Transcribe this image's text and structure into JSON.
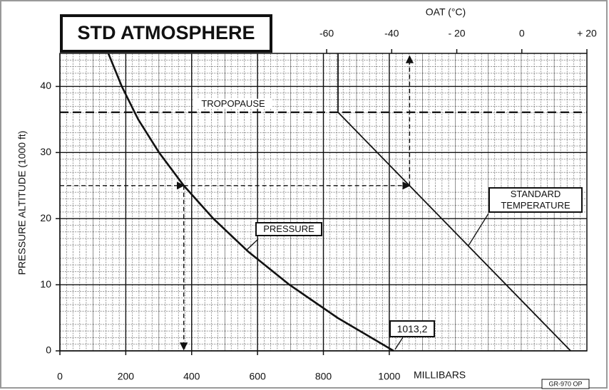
{
  "chart_data": {
    "type": "line",
    "title": "STD ATMOSPHERE",
    "xlabel": "MILLIBARS",
    "x2label": "OAT (°C)",
    "ylabel": "PRESSURE ALTITUDE (1000 ft)",
    "xlim": [
      0,
      1600
    ],
    "xticks": [
      0,
      200,
      400,
      600,
      800,
      1000
    ],
    "x2lim": [
      -142,
      20
    ],
    "x2ticks": [
      -60,
      -40,
      {
        "value": -20,
        "label": "- 20"
      },
      0,
      {
        "value": 20,
        "label": "+ 20"
      }
    ],
    "ylim": [
      0,
      45
    ],
    "yticks": [
      0,
      10,
      20,
      30,
      40
    ],
    "grid": true,
    "series": [
      {
        "name": "PRESSURE",
        "color": "#111111",
        "x": [
          1013.2,
          843,
          697,
          572,
          466,
          376,
          301,
          238,
          227,
          188,
          147
        ],
        "values": [
          0,
          5,
          10,
          15,
          20,
          25,
          30,
          35,
          36.09,
          40,
          45
        ]
      },
      {
        "name": "STANDARD TEMPERATURE",
        "color": "#111111",
        "axis": "x2",
        "x": [
          15,
          -56.5,
          -56.5
        ],
        "values": [
          0,
          36.09,
          45
        ]
      }
    ],
    "tropopause": {
      "label": "TROPOPAUSE",
      "altitude": 36.09
    },
    "example": {
      "altitude": 25,
      "pressure": 376,
      "temperature": -34.5
    },
    "sea_level_label": "1013,2",
    "sea_level_pressure": 1013.2,
    "code": "GR-970 OP"
  }
}
